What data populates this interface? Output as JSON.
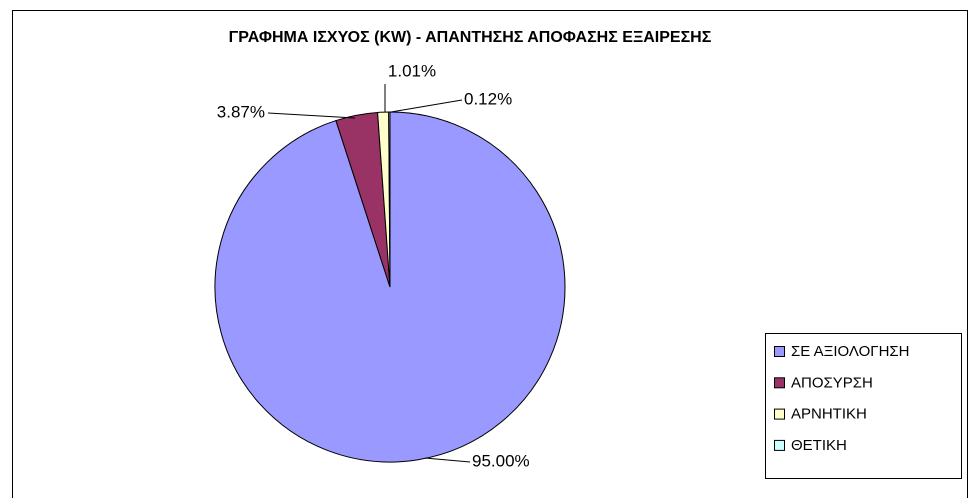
{
  "chart_data": {
    "type": "pie",
    "title": "ΓΡΑΦΗΜΑ ΙΣΧΥΟΣ (KW) - ΑΠΑΝΤΗΣΗΣ ΑΠΟΦΑΣΗΣ ΕΞΑΙΡΕΣΗΣ",
    "categories": [
      "ΣΕ ΑΞΙΟΛΟΓΗΣΗ",
      "ΑΠΟΣΥΡΣΗ",
      "ΑΡΝΗΤΙΚΗ",
      "ΘΕΤΙΚΗ"
    ],
    "values": [
      95.0,
      3.87,
      1.01,
      0.12
    ],
    "value_labels": [
      "95.00%",
      "3.87%",
      "1.01%",
      "0.12%"
    ],
    "colors": [
      "#9999ff",
      "#993366",
      "#ffffcc",
      "#ccffff"
    ],
    "legend": "right"
  }
}
